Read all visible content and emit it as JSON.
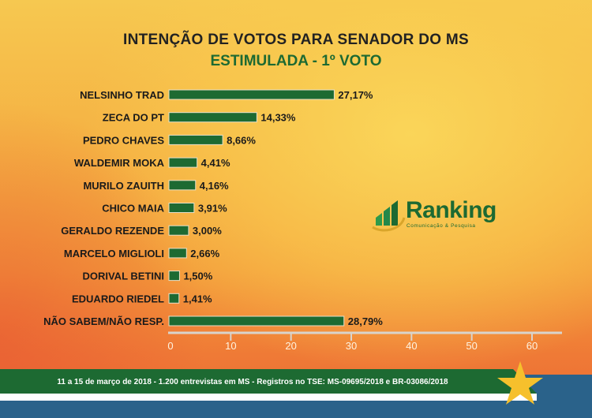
{
  "chart_data": {
    "type": "bar",
    "orientation": "horizontal",
    "title": "INTENÇÃO DE VOTOS PARA SENADOR DO MS",
    "subtitle": "ESTIMULADA - 1º VOTO",
    "categories": [
      "NELSINHO TRAD",
      "ZECA DO PT",
      "PEDRO CHAVES",
      "WALDEMIR MOKA",
      "MURILO ZAUITH",
      "CHICO MAIA",
      "GERALDO REZENDE",
      "MARCELO MIGLIOLI",
      "DORIVAL BETINI",
      "EDUARDO RIEDEL",
      "NÃO SABEM/NÃO RESP."
    ],
    "values": [
      27.17,
      14.33,
      8.66,
      4.41,
      4.16,
      3.91,
      3.0,
      2.66,
      1.5,
      1.41,
      28.79
    ],
    "labels": [
      "27,17%",
      "14,33%",
      "8,66%",
      "4,41%",
      "4,16%",
      "3,91%",
      "3,00%",
      "2,66%",
      "1,50%",
      "1,41%",
      "28,79%"
    ],
    "xlim": [
      0,
      60
    ],
    "xticks": [
      "0",
      "10",
      "20",
      "30",
      "40",
      "50",
      "60"
    ],
    "grid": false,
    "bar_color": "#1d6a32",
    "highlight_label_color": "#d9332a"
  },
  "logo": {
    "name": "Ranking",
    "tagline": "Comunicação & Pesquisa"
  },
  "footer": {
    "text": "11 a 15 de março de 2018 - 1.200 entrevistas em MS - Registros no TSE: MS-09695/2018 e BR-03086/2018"
  },
  "colors": {
    "green": "#1d6a32",
    "blue": "#2a628a",
    "star": "#f6c02c"
  }
}
